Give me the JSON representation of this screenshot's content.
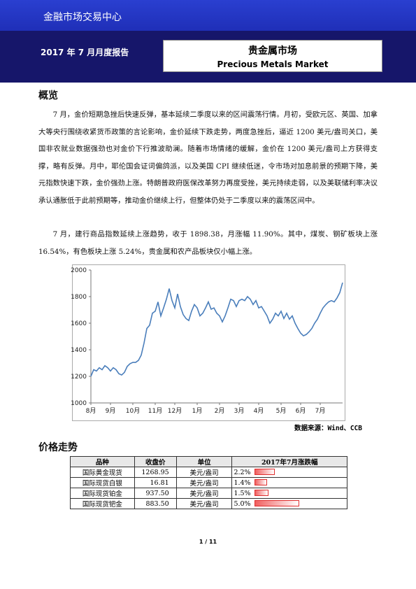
{
  "header": {
    "org": "金融市场交易中心",
    "report": "2017 年 7 月月度报告",
    "title_cn": "贵金属市场",
    "title_en": "Precious Metals Market"
  },
  "overview": {
    "heading": "概览",
    "paragraphs": [
      "7 月，金价短期急挫后快速反弹，基本延续二季度以来的区间震荡行情。月初，受欧元区、英国、加拿大等央行围绕收紧货币政策的言论影响，金价延续下跌走势，两度急挫后，逼近 1200 美元/盎司关口，美国非农就业数据强劲也对金价下行推波助澜。随着市场情绪的缓解，金价在 1200 美元/盎司上方获得支撑，略有反弹。月中，耶伦国会证词偏鸽派，以及美国 CPI 继续低迷，令市场对加息前景的预期下降，美元指数快速下跌，金价强劲上涨。特朗普政府医保改革努力再度受挫，美元持续走弱，以及美联储利率决议承认通胀低于此前预期等，推动金价继续上行，但整体仍处于二季度以来的震荡区间中。",
      "7 月，建行商品指数延续上涨趋势，收于 1898.38，月涨幅 11.90%。其中，煤炭、钢矿板块上涨 16.54%，有色板块上涨 5.24%，贵金属和农产品板块仅小幅上涨。"
    ]
  },
  "chart_data": {
    "type": "line",
    "color": "#4a7ebb",
    "categories": [
      "8月",
      null,
      null,
      null,
      null,
      null,
      null,
      "9月",
      null,
      null,
      null,
      null,
      null,
      null,
      null,
      "10月",
      null,
      null,
      null,
      null,
      null,
      null,
      null,
      "11月",
      null,
      null,
      null,
      null,
      null,
      null,
      "12月",
      null,
      null,
      null,
      null,
      null,
      null,
      null,
      "1月",
      null,
      null,
      null,
      null,
      null,
      null,
      null,
      "2月",
      null,
      null,
      null,
      null,
      null,
      null,
      "3月",
      null,
      null,
      null,
      null,
      null,
      null,
      "4月",
      null,
      null,
      null,
      null,
      null,
      null,
      null,
      "5月",
      null,
      null,
      null,
      null,
      null,
      null,
      "6月",
      null,
      null,
      null,
      null,
      null,
      null,
      "7月",
      null,
      null,
      null,
      null,
      null,
      null,
      null,
      null
    ],
    "values": [
      1200,
      1250,
      1240,
      1265,
      1250,
      1280,
      1265,
      1240,
      1265,
      1250,
      1220,
      1210,
      1230,
      1275,
      1295,
      1305,
      1305,
      1320,
      1360,
      1450,
      1560,
      1585,
      1675,
      1690,
      1760,
      1655,
      1715,
      1780,
      1860,
      1770,
      1715,
      1820,
      1725,
      1665,
      1635,
      1620,
      1690,
      1740,
      1715,
      1655,
      1675,
      1715,
      1760,
      1705,
      1715,
      1675,
      1655,
      1610,
      1655,
      1715,
      1780,
      1770,
      1725,
      1770,
      1780,
      1770,
      1800,
      1780,
      1740,
      1770,
      1715,
      1725,
      1690,
      1655,
      1600,
      1630,
      1675,
      1655,
      1690,
      1635,
      1675,
      1630,
      1655,
      1600,
      1560,
      1525,
      1505,
      1515,
      1535,
      1560,
      1600,
      1630,
      1675,
      1715,
      1740,
      1760,
      1770,
      1760,
      1790,
      1830,
      1905
    ],
    "ylim": [
      1000,
      2000
    ],
    "yticks": [
      1000,
      1200,
      1400,
      1600,
      1800,
      2000
    ],
    "grid": false
  },
  "source": "数据来源：Wind、CCB",
  "prices": {
    "heading": "价格走势",
    "headers": [
      "品种",
      "收盘价",
      "单位",
      "2017年7月涨跌幅"
    ],
    "rows": [
      [
        "国际黄金现货",
        "1268.95",
        "美元/盎司",
        "2.2%"
      ],
      [
        "国际现货白银",
        "16.81",
        "美元/盎司",
        "1.4%"
      ],
      [
        "国际现货铂金",
        "937.50",
        "美元/盎司",
        "1.5%"
      ],
      [
        "国际现货钯金",
        "883.50",
        "美元/盎司",
        "5.0%"
      ]
    ]
  },
  "footer": "1 / 11"
}
